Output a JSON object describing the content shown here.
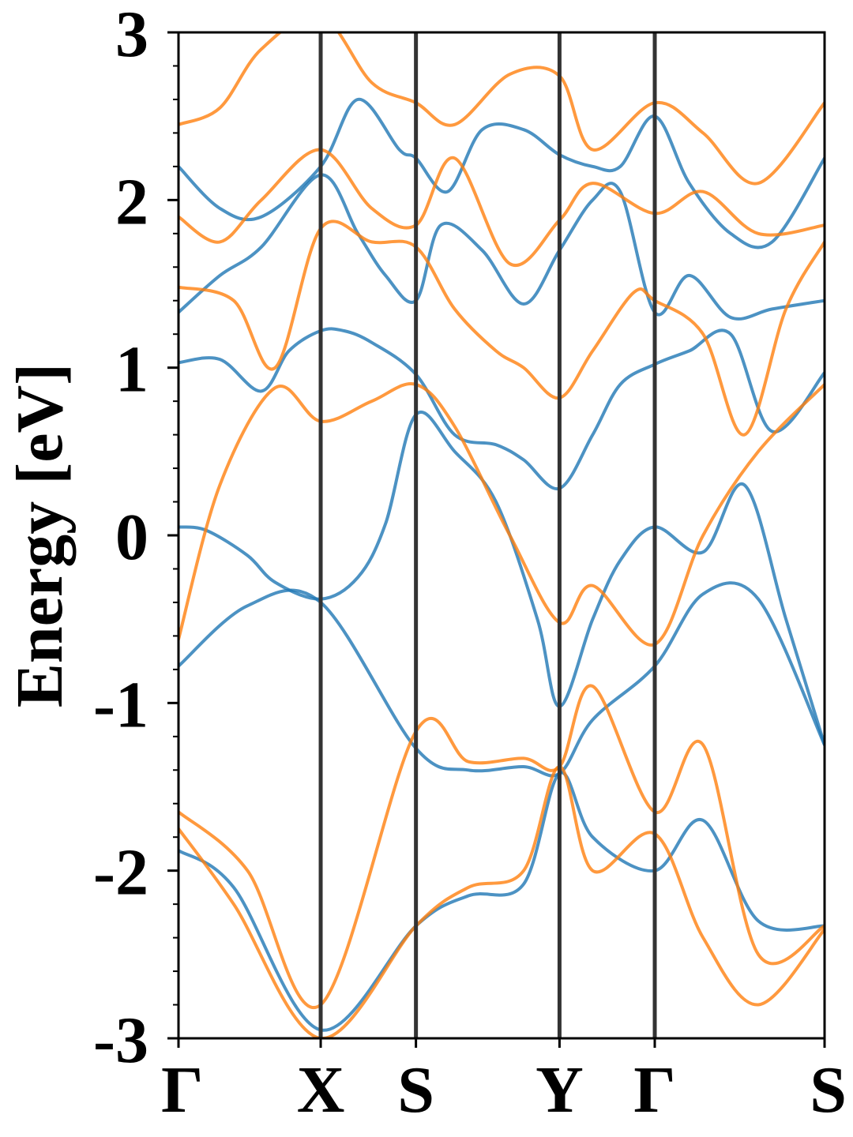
{
  "chart_data": {
    "type": "line",
    "title": "",
    "ylabel": "Energy [eV]",
    "xlabel": "",
    "ylim": [
      -3,
      3
    ],
    "xlim": [
      0,
      4.68
    ],
    "y_ticks": [
      -3,
      -2,
      -1,
      0,
      1,
      2,
      3
    ],
    "y_tick_labels": [
      "-3",
      "-2",
      "-1",
      "0",
      "1",
      "2",
      "3"
    ],
    "k_points": [
      {
        "label": "Γ",
        "x": 0
      },
      {
        "label": "X",
        "x": 1.03
      },
      {
        "label": "S",
        "x": 1.72
      },
      {
        "label": "Y",
        "x": 2.76
      },
      {
        "label": "Γ",
        "x": 3.45
      },
      {
        "label": "S",
        "x": 4.68
      }
    ],
    "grid": false,
    "legend": false,
    "colors": {
      "blue": "#1f77b4",
      "orange": "#ff7f0e",
      "kline": "#333333"
    },
    "series": [
      {
        "color": "#1f77b4",
        "x": [
          0,
          0.2,
          0.5,
          0.7,
          1.03,
          1.3,
          1.5,
          1.72,
          2.0,
          2.3,
          2.6,
          2.76,
          3.0,
          3.2,
          3.45,
          3.8,
          4.1,
          4.4,
          4.68
        ],
        "y": [
          0.05,
          0.03,
          -0.12,
          -0.28,
          -0.38,
          -0.25,
          0.07,
          0.72,
          0.5,
          0.2,
          -0.5,
          -1.02,
          -0.5,
          -0.15,
          0.05,
          -0.1,
          0.3,
          -0.5,
          -1.25
        ]
      },
      {
        "color": "#1f77b4",
        "x": [
          0,
          0.3,
          0.6,
          0.8,
          1.03,
          1.2,
          1.4,
          1.72,
          2.0,
          2.3,
          2.5,
          2.76,
          3.0,
          3.2,
          3.45,
          3.7,
          4.0,
          4.3,
          4.68
        ],
        "y": [
          1.03,
          1.05,
          0.86,
          1.1,
          1.22,
          1.22,
          1.15,
          0.96,
          0.6,
          0.54,
          0.45,
          0.28,
          0.6,
          0.9,
          1.02,
          1.1,
          1.2,
          0.62,
          0.97
        ]
      },
      {
        "color": "#1f77b4",
        "x": [
          0,
          0.3,
          0.6,
          1.03,
          1.3,
          1.5,
          1.72,
          1.9,
          2.2,
          2.5,
          2.76,
          3.0,
          3.2,
          3.45,
          3.7,
          4.0,
          4.3,
          4.68
        ],
        "y": [
          1.33,
          1.55,
          1.72,
          2.15,
          1.8,
          1.55,
          1.4,
          1.85,
          1.7,
          1.38,
          1.7,
          2.0,
          2.05,
          1.33,
          1.55,
          1.3,
          1.35,
          1.4
        ]
      },
      {
        "color": "#1f77b4",
        "x": [
          0,
          0.3,
          0.6,
          1.03,
          1.3,
          1.6,
          1.72,
          1.95,
          2.2,
          2.5,
          2.76,
          3.0,
          3.2,
          3.45,
          3.7,
          4.0,
          4.3,
          4.68
        ],
        "y": [
          2.2,
          1.95,
          1.9,
          2.2,
          2.6,
          2.3,
          2.25,
          2.05,
          2.42,
          2.42,
          2.27,
          2.2,
          2.2,
          2.5,
          2.1,
          1.8,
          1.75,
          2.25
        ]
      },
      {
        "color": "#1f77b4",
        "x": [
          0,
          0.5,
          1.03,
          1.72,
          2.1,
          2.5,
          2.76,
          3.0,
          3.45,
          3.8,
          4.2,
          4.68
        ],
        "y": [
          -0.78,
          -0.42,
          -0.4,
          -1.27,
          -1.4,
          -1.38,
          -1.42,
          -1.1,
          -0.78,
          -0.35,
          -0.38,
          -1.25
        ]
      },
      {
        "color": "#1f77b4",
        "x": [
          0,
          0.4,
          1.03,
          1.72,
          2.1,
          2.5,
          2.76,
          3.0,
          3.45,
          3.8,
          4.2,
          4.68
        ],
        "y": [
          -1.88,
          -2.1,
          -2.95,
          -2.33,
          -2.15,
          -2.08,
          -1.42,
          -1.8,
          -2.0,
          -1.7,
          -2.3,
          -2.33
        ]
      }
    ],
    "series_orange": [
      {
        "color": "#ff7f0e",
        "x": [
          0,
          0.3,
          0.7,
          1.03,
          1.4,
          1.72,
          2.0,
          2.4,
          2.76,
          3.0,
          3.45,
          3.8,
          4.2,
          4.68
        ],
        "y": [
          -0.62,
          0.3,
          0.88,
          0.68,
          0.8,
          0.9,
          0.65,
          0.0,
          -0.52,
          -0.3,
          -0.65,
          0.0,
          0.5,
          0.9
        ]
      },
      {
        "color": "#ff7f0e",
        "x": [
          0,
          0.4,
          0.7,
          1.03,
          1.4,
          1.72,
          2.0,
          2.3,
          2.5,
          2.76,
          3.0,
          3.3,
          3.45,
          3.8,
          4.1,
          4.4,
          4.68
        ],
        "y": [
          1.48,
          1.4,
          1.0,
          1.83,
          1.75,
          1.72,
          1.35,
          1.1,
          1.0,
          0.82,
          1.1,
          1.45,
          1.4,
          1.2,
          0.6,
          1.35,
          1.75
        ]
      },
      {
        "color": "#ff7f0e",
        "x": [
          0,
          0.3,
          0.6,
          1.03,
          1.4,
          1.72,
          2.0,
          2.4,
          2.76,
          3.0,
          3.45,
          3.8,
          4.2,
          4.68
        ],
        "y": [
          1.9,
          1.75,
          2.0,
          2.3,
          1.95,
          1.85,
          2.25,
          1.62,
          1.88,
          2.1,
          1.92,
          2.05,
          1.8,
          1.85
        ]
      },
      {
        "color": "#ff7f0e",
        "x": [
          0,
          0.3,
          0.6,
          1.03,
          1.4,
          1.72,
          2.0,
          2.4,
          2.76,
          3.0,
          3.45,
          3.8,
          4.2,
          4.68
        ],
        "y": [
          2.45,
          2.55,
          2.9,
          3.1,
          2.7,
          2.58,
          2.45,
          2.75,
          2.74,
          2.3,
          2.58,
          2.4,
          2.1,
          2.58
        ]
      },
      {
        "color": "#ff7f0e",
        "x": [
          0,
          0.5,
          1.03,
          1.72,
          2.1,
          2.5,
          2.76,
          3.0,
          3.45,
          3.8,
          4.2,
          4.68
        ],
        "y": [
          -1.65,
          -2.0,
          -2.8,
          -1.17,
          -1.35,
          -1.33,
          -1.38,
          -0.9,
          -1.65,
          -1.25,
          -2.5,
          -2.33
        ]
      },
      {
        "color": "#ff7f0e",
        "x": [
          0,
          0.4,
          1.03,
          1.72,
          2.1,
          2.5,
          2.76,
          3.0,
          3.45,
          3.8,
          4.2,
          4.68
        ],
        "y": [
          -1.75,
          -2.2,
          -3.0,
          -2.33,
          -2.1,
          -2.0,
          -1.38,
          -2.0,
          -1.78,
          -2.4,
          -2.8,
          -2.35
        ]
      }
    ]
  }
}
